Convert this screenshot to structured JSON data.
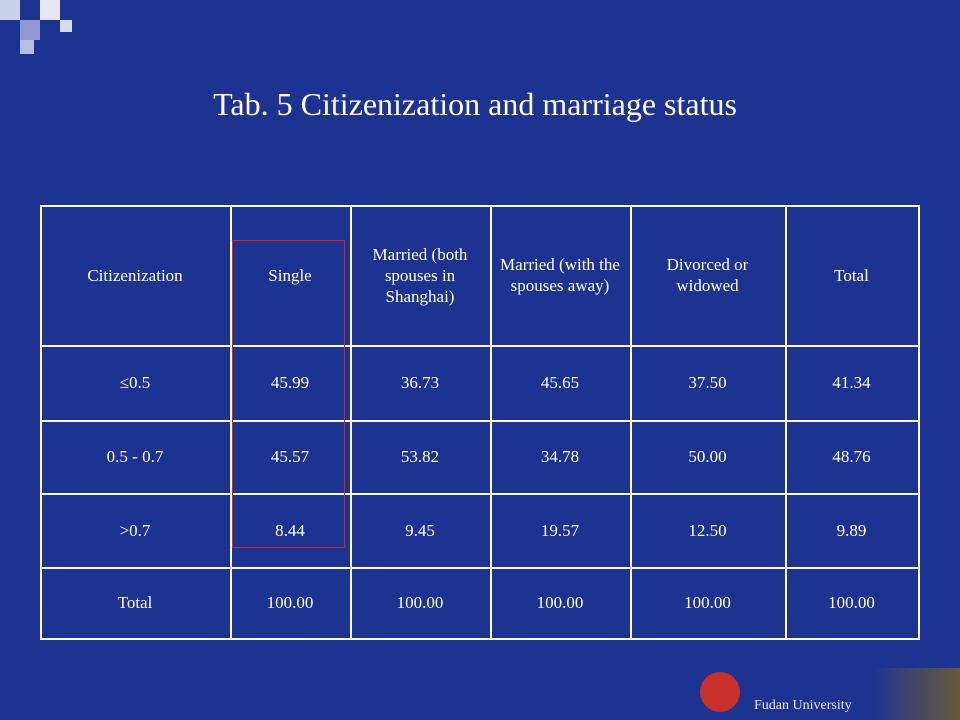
{
  "title": "Tab. 5 Citizenization and marriage status",
  "table": {
    "header": [
      "Citizenization",
      "Single",
      "Married (both spouses in Shanghai)",
      "Married (with the spouses away)",
      "Divorced or widowed",
      "Total"
    ],
    "rows": [
      [
        "≤0.5",
        "45.99",
        "36.73",
        "45.65",
        "37.50",
        "41.34"
      ],
      [
        "0.5 - 0.7",
        "45.57",
        "53.82",
        "34.78",
        "50.00",
        "48.76"
      ],
      [
        ">0.7",
        "8.44",
        "9.45",
        "19.57",
        "12.50",
        "9.89"
      ],
      [
        "Total",
        "100.00",
        "100.00",
        "100.00",
        "100.00",
        "100.00"
      ]
    ]
  },
  "footer": "Fudan University"
}
